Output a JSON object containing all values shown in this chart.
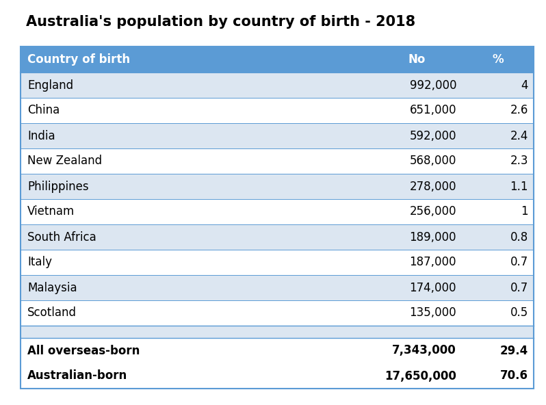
{
  "title": "Australia's population by country of birth - 2018",
  "header": [
    "Country of birth",
    "No",
    "%"
  ],
  "rows": [
    [
      "England",
      "992,000",
      "4"
    ],
    [
      "China",
      "651,000",
      "2.6"
    ],
    [
      "India",
      "592,000",
      "2.4"
    ],
    [
      "New Zealand",
      "568,000",
      "2.3"
    ],
    [
      "Philippines",
      "278,000",
      "1.1"
    ],
    [
      "Vietnam",
      "256,000",
      "1"
    ],
    [
      "South Africa",
      "189,000",
      "0.8"
    ],
    [
      "Italy",
      "187,000",
      "0.7"
    ],
    [
      "Malaysia",
      "174,000",
      "0.7"
    ],
    [
      "Scotland",
      "135,000",
      "0.5"
    ]
  ],
  "summary_rows": [
    [
      "All overseas-born",
      "7,343,000",
      "29.4"
    ],
    [
      "Australian-born",
      "17,650,000",
      "70.6"
    ]
  ],
  "header_bg": "#5b9bd5",
  "header_text": "#ffffff",
  "row_bg_light": "#dce6f1",
  "row_bg_white": "#ffffff",
  "border_color": "#5b9bd5",
  "title_fontsize": 15,
  "header_fontsize": 12,
  "row_fontsize": 12,
  "summary_fontsize": 12,
  "bg_color": "#ffffff",
  "fig_width": 7.98,
  "fig_height": 5.92,
  "dpi": 100
}
